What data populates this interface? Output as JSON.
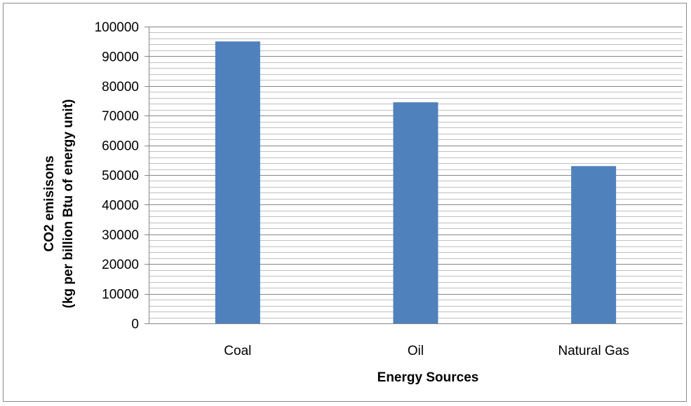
{
  "chart_data": {
    "type": "bar",
    "categories": [
      "Coal",
      "Oil",
      "Natural Gas"
    ],
    "values": [
      95000,
      74500,
      53000
    ],
    "xlabel": "Energy Sources",
    "ylabel_lines": [
      "CO2 emisisons",
      "(kg per billion  Btu of energy unit)"
    ],
    "ylim": [
      0,
      100000
    ],
    "yticks": [
      "0",
      "10000",
      "20000",
      "30000",
      "40000",
      "50000",
      "60000",
      "70000",
      "80000",
      "90000",
      "100000"
    ],
    "grid": true,
    "legend": "none",
    "bar_color": "#4F81BD",
    "gridline_color": "#868686"
  }
}
